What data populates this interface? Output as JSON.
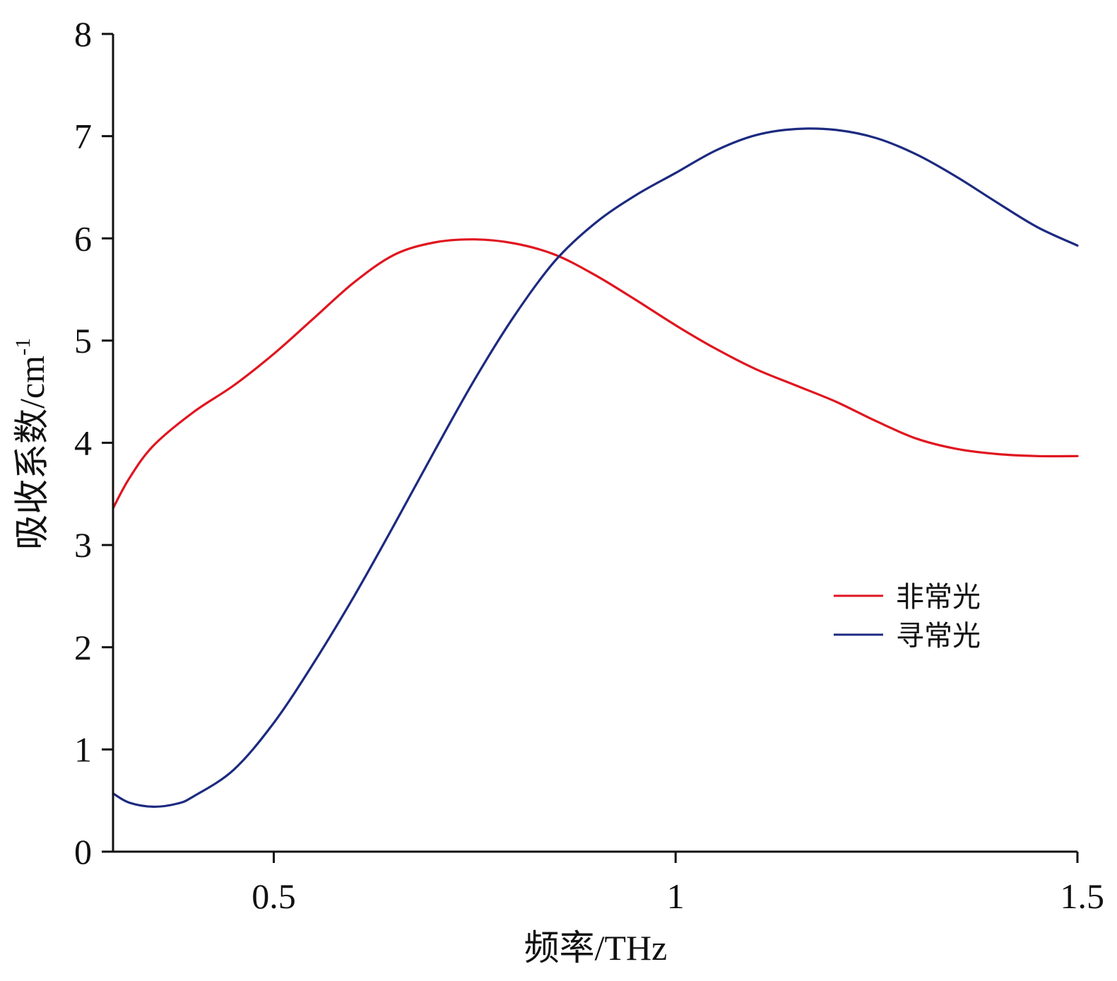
{
  "chart_data": {
    "type": "line",
    "xlabel": "频率/THz",
    "ylabel": {
      "main": "吸收系数/cm",
      "sup": "-1"
    },
    "xlim": [
      0.3,
      1.5
    ],
    "ylim": [
      0,
      8
    ],
    "x_ticks": [
      {
        "value": 0.5,
        "label": "0.5"
      },
      {
        "value": 1.0,
        "label": "1"
      },
      {
        "value": 1.5,
        "label": "1.5"
      }
    ],
    "y_ticks": [
      {
        "value": 0,
        "label": "0"
      },
      {
        "value": 1,
        "label": "1"
      },
      {
        "value": 2,
        "label": "2"
      },
      {
        "value": 3,
        "label": "3"
      },
      {
        "value": 4,
        "label": "4"
      },
      {
        "value": 5,
        "label": "5"
      },
      {
        "value": 6,
        "label": "6"
      },
      {
        "value": 7,
        "label": "7"
      },
      {
        "value": 8,
        "label": "8"
      }
    ],
    "legend": "right",
    "grid": false,
    "series": [
      {
        "name": "非常光",
        "color": "#e0151f",
        "points": [
          [
            0.3,
            3.36
          ],
          [
            0.32,
            3.65
          ],
          [
            0.35,
            3.97
          ],
          [
            0.4,
            4.3
          ],
          [
            0.45,
            4.56
          ],
          [
            0.5,
            4.87
          ],
          [
            0.55,
            5.22
          ],
          [
            0.6,
            5.57
          ],
          [
            0.65,
            5.84
          ],
          [
            0.7,
            5.96
          ],
          [
            0.75,
            5.99
          ],
          [
            0.8,
            5.95
          ],
          [
            0.85,
            5.84
          ],
          [
            0.9,
            5.64
          ],
          [
            0.95,
            5.4
          ],
          [
            1.0,
            5.15
          ],
          [
            1.05,
            4.92
          ],
          [
            1.1,
            4.72
          ],
          [
            1.15,
            4.56
          ],
          [
            1.2,
            4.4
          ],
          [
            1.25,
            4.21
          ],
          [
            1.3,
            4.04
          ],
          [
            1.35,
            3.94
          ],
          [
            1.4,
            3.89
          ],
          [
            1.45,
            3.87
          ],
          [
            1.5,
            3.87
          ]
        ]
      },
      {
        "name": "寻常光",
        "color": "#1c2a80",
        "points": [
          [
            0.3,
            0.57
          ],
          [
            0.32,
            0.48
          ],
          [
            0.35,
            0.44
          ],
          [
            0.38,
            0.47
          ],
          [
            0.4,
            0.54
          ],
          [
            0.45,
            0.8
          ],
          [
            0.5,
            1.26
          ],
          [
            0.55,
            1.85
          ],
          [
            0.6,
            2.5
          ],
          [
            0.65,
            3.2
          ],
          [
            0.7,
            3.92
          ],
          [
            0.75,
            4.62
          ],
          [
            0.8,
            5.25
          ],
          [
            0.85,
            5.78
          ],
          [
            0.9,
            6.15
          ],
          [
            0.95,
            6.42
          ],
          [
            1.0,
            6.64
          ],
          [
            1.05,
            6.86
          ],
          [
            1.1,
            7.01
          ],
          [
            1.15,
            7.07
          ],
          [
            1.2,
            7.06
          ],
          [
            1.25,
            6.98
          ],
          [
            1.3,
            6.82
          ],
          [
            1.35,
            6.6
          ],
          [
            1.4,
            6.35
          ],
          [
            1.45,
            6.11
          ],
          [
            1.5,
            5.93
          ]
        ]
      }
    ]
  }
}
